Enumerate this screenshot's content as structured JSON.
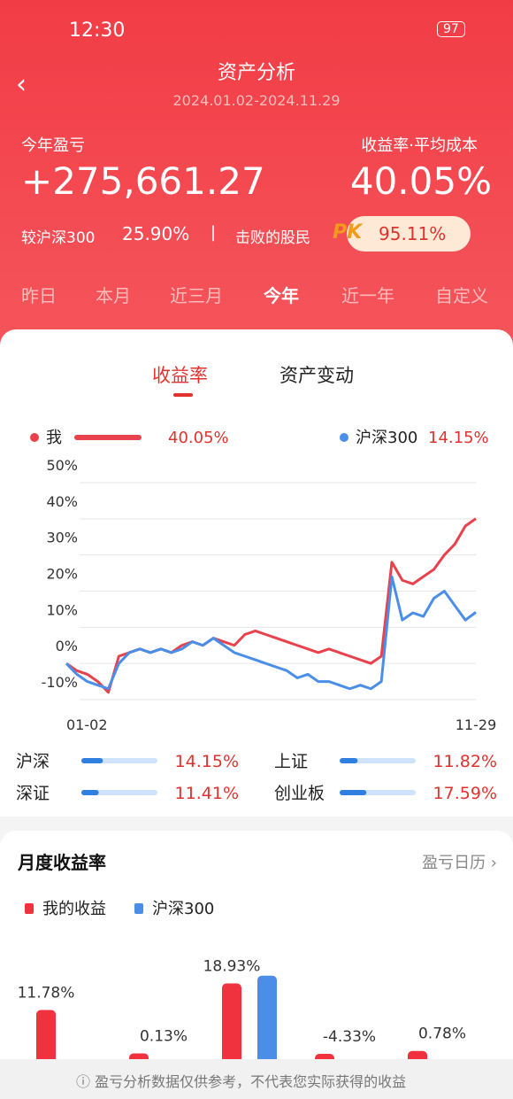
{
  "status_bar": {
    "time": "12:30",
    "battery": "97"
  },
  "header": {
    "title": "资产分析",
    "date_range": "2024.01.02-2024.11.29"
  },
  "summary": {
    "profit_label": "今年盈亏",
    "profit": "+275,661.27",
    "rate_label": "收益率·平均成本",
    "rate": "40.05%",
    "compare_label": "较沪深300",
    "compare_value": "25.90%",
    "beat_label": "击败的股民",
    "pk": "PK",
    "beat_value": "95.11%"
  },
  "periods": [
    "昨日",
    "本月",
    "近三月",
    "今年",
    "近一年",
    "自定义"
  ],
  "tabs": [
    "收益率",
    "资产变动"
  ],
  "performance_chart": {
    "type": "line",
    "categories": [
      "01-02",
      null,
      null,
      null,
      null,
      null,
      null,
      null,
      null,
      null,
      null,
      null,
      null,
      null,
      null,
      null,
      null,
      null,
      null,
      null,
      null,
      null,
      null,
      null,
      null,
      null,
      null,
      null,
      null,
      null,
      null,
      null,
      null,
      null,
      null,
      null,
      null,
      null,
      null,
      "11-29"
    ],
    "series": [
      {
        "name": "我",
        "color": "#e8424c",
        "legend_value": "40.05%",
        "values": [
          0,
          -2,
          -3,
          -5,
          -8,
          2,
          3,
          4,
          3,
          4,
          3,
          5,
          6,
          5,
          7,
          6,
          5,
          8,
          9,
          8,
          7,
          6,
          5,
          4,
          3,
          4,
          3,
          2,
          1,
          0,
          2,
          28,
          23,
          22,
          24,
          26,
          30,
          33,
          38,
          40.05
        ]
      },
      {
        "name": "沪深300",
        "color": "#4a8ee8",
        "legend_value": "14.15%",
        "values": [
          0,
          -3,
          -5,
          -6,
          -7,
          0,
          3,
          4,
          3,
          4,
          3,
          4,
          6,
          5,
          7,
          5,
          3,
          2,
          1,
          0,
          -1,
          -2,
          -4,
          -3,
          -5,
          -5,
          -6,
          -7,
          -6,
          -7,
          -5,
          24,
          12,
          14,
          13,
          18,
          20,
          16,
          12,
          14.15
        ]
      }
    ],
    "ylim": [
      -10,
      50
    ],
    "yticks": [
      {
        "value": 50,
        "label": "50%"
      },
      {
        "value": 40,
        "label": "40%"
      },
      {
        "value": 30,
        "label": "30%"
      },
      {
        "value": 20,
        "label": "20%"
      },
      {
        "value": 10,
        "label": "10%"
      },
      {
        "value": 0,
        "label": "0%"
      },
      {
        "value": -10,
        "label": "-10%"
      }
    ],
    "grid": true
  },
  "indices": [
    {
      "name": "沪深",
      "value": 14.15,
      "value_label": "14.15%"
    },
    {
      "name": "上证",
      "value": 11.82,
      "value_label": "11.82%"
    },
    {
      "name": "深证",
      "value": 11.41,
      "value_label": "11.41%"
    },
    {
      "name": "创业板",
      "value": 17.59,
      "value_label": "17.59%"
    }
  ],
  "monthly": {
    "type": "bar",
    "title": "月度收益率",
    "link": "盈亏日历",
    "series": [
      {
        "name": "我的收益",
        "color": "#f0323e",
        "values": [
          11.78,
          0.13,
          18.93,
          -4.33,
          0.78
        ],
        "value_labels": [
          "11.78%",
          "0.13%",
          "18.93%",
          "-4.33%",
          "0.78%"
        ]
      },
      {
        "name": "沪深300",
        "color": "#4a8ee8",
        "values": [
          null,
          null,
          21,
          null,
          null
        ]
      }
    ]
  },
  "footer": {
    "notice": "盈亏分析数据仅供参考，不代表您实际获得的收益"
  }
}
